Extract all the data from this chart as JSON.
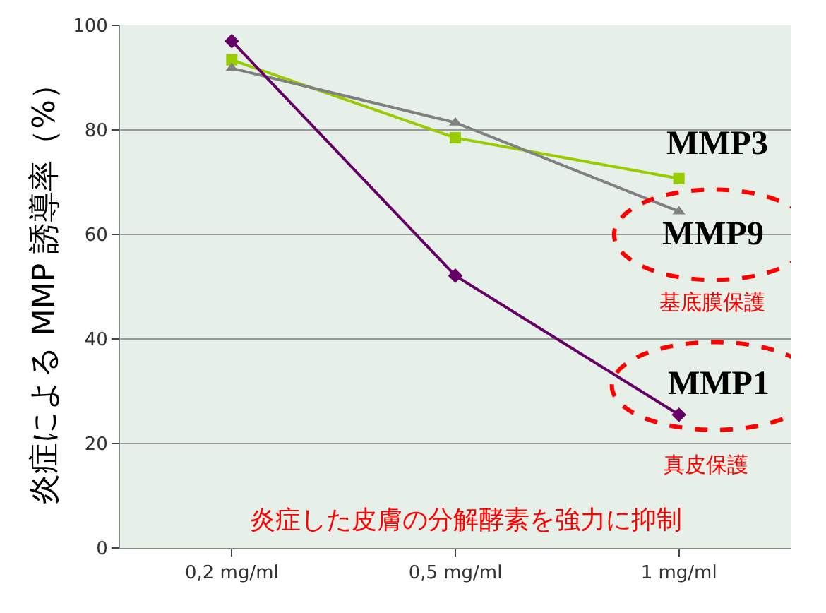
{
  "chart_data": {
    "type": "line",
    "ylabel": "炎症による MMP 誘導率（%）",
    "categories": [
      "0,2 mg/ml",
      "0,5 mg/ml",
      "1 mg/ml"
    ],
    "series": [
      {
        "name": "MMP3",
        "color": "#99cc00",
        "marker": "square",
        "values": [
          93.4,
          78.5,
          70.7
        ]
      },
      {
        "name": "MMP9",
        "color": "#808080",
        "marker": "triangle",
        "values": [
          91.8,
          81.4,
          64.4
        ]
      },
      {
        "name": "MMP1",
        "color": "#660066",
        "marker": "diamond",
        "values": [
          97,
          52.1,
          25.5
        ]
      }
    ],
    "ylim": [
      0,
      100
    ],
    "yticks": [
      0,
      20,
      40,
      60,
      80,
      100
    ],
    "grid": "y",
    "legend": false,
    "annotations": [
      "基底膜保護",
      "真皮保護",
      "炎症した皮膚の分解酵素を強力に抑制"
    ]
  }
}
